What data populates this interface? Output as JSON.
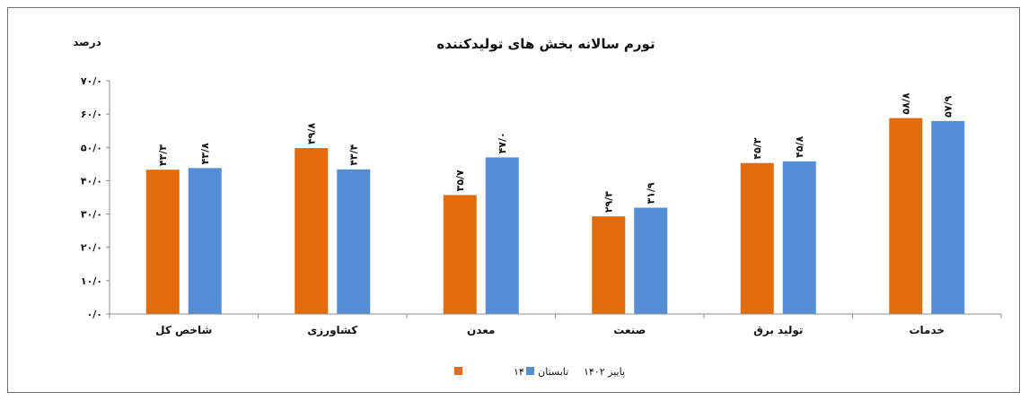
{
  "colors": {
    "summer": "#e36c0a",
    "autumn": "#558ed5",
    "axis": "#8c8c8c"
  },
  "chart_data": {
    "type": "bar",
    "title": "تورم سالانه بخش های تولیدکننده",
    "ylabel": "درصد",
    "ylim": [
      0,
      70
    ],
    "yticks": [
      "۰/۰",
      "۱۰/۰",
      "۲۰/۰",
      "۳۰/۰",
      "۴۰/۰",
      "۵۰/۰",
      "۶۰/۰",
      "۷۰/۰"
    ],
    "categories": [
      "شاخص کل",
      "کشاورزی",
      "معدن",
      "صنعت",
      "تولید برق",
      "خدمات"
    ],
    "series": [
      {
        "name": "تابستان ۱۴۰۲",
        "color": "#e36c0a",
        "values": [
          43.3,
          49.8,
          35.7,
          29.3,
          45.3,
          58.8
        ],
        "labels": [
          "۴۳/۳",
          "۴۹/۸",
          "۳۵/۷",
          "۲۹/۳",
          "۴۵/۳",
          "۵۸/۸"
        ]
      },
      {
        "name": "پاییز ۱۴۰۲",
        "color": "#558ed5",
        "values": [
          43.8,
          43.4,
          47.0,
          31.9,
          45.8,
          57.9
        ],
        "labels": [
          "۴۳/۸",
          "۴۳/۴",
          "۴۷/۰",
          "۳۱/۹",
          "۴۵/۸",
          "۵۷/۹"
        ]
      }
    ],
    "legend_position": "bottom"
  }
}
